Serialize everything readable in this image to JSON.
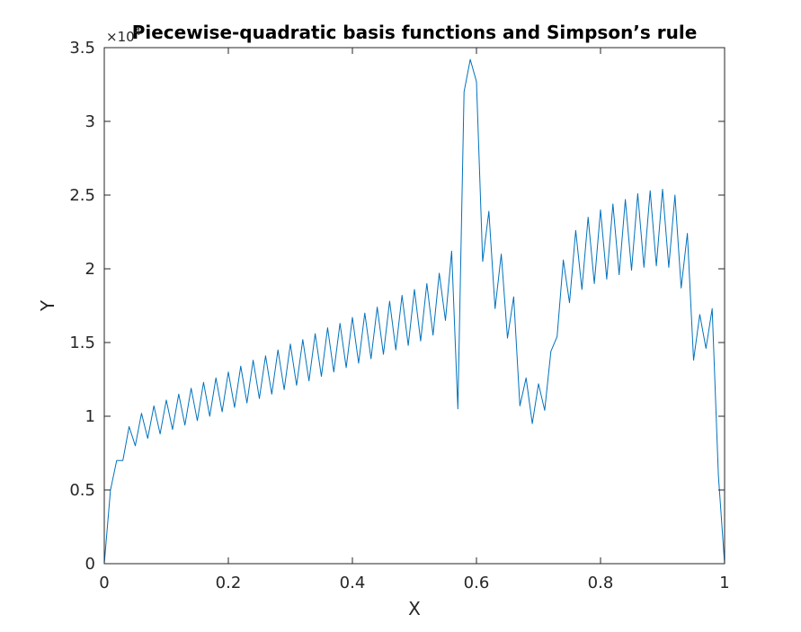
{
  "chart_data": {
    "type": "line",
    "title": "Piecewise-quadratic basis functions and Simpson’s rule",
    "xlabel": "X",
    "ylabel": "Y",
    "xlim": [
      0,
      1
    ],
    "ylim": [
      0,
      35000
    ],
    "y_exponent_label": "×10",
    "y_exponent_power": "4",
    "xticks": [
      0,
      0.2,
      0.4,
      0.6,
      0.8,
      1
    ],
    "xtick_labels": [
      "0",
      "0.2",
      "0.4",
      "0.6",
      "0.8",
      "1"
    ],
    "yticks": [
      0,
      5000,
      10000,
      15000,
      20000,
      25000,
      30000,
      35000
    ],
    "ytick_labels": [
      "0",
      "0.5",
      "1",
      "1.5",
      "2",
      "2.5",
      "3",
      "3.5"
    ],
    "grid": false,
    "line_color": "#0072BD",
    "series": [
      {
        "x": [
          0,
          0.01,
          0.02,
          0.03,
          0.04,
          0.05,
          0.06,
          0.07,
          0.08,
          0.09,
          0.1,
          0.11,
          0.12,
          0.13,
          0.14,
          0.15,
          0.16,
          0.17,
          0.18,
          0.19,
          0.2,
          0.21,
          0.22,
          0.23,
          0.24,
          0.25,
          0.26,
          0.27,
          0.28,
          0.29,
          0.3,
          0.31,
          0.32,
          0.33,
          0.34,
          0.35,
          0.36,
          0.37,
          0.38,
          0.39,
          0.4,
          0.41,
          0.42,
          0.43,
          0.44,
          0.45,
          0.46,
          0.47,
          0.48,
          0.49,
          0.5,
          0.51,
          0.52,
          0.53,
          0.54,
          0.55,
          0.56,
          0.57,
          0.58,
          0.59,
          0.6,
          0.61,
          0.62,
          0.63,
          0.64,
          0.65,
          0.66,
          0.67,
          0.68,
          0.69,
          0.7,
          0.71,
          0.72,
          0.73,
          0.74,
          0.75,
          0.76,
          0.77,
          0.78,
          0.79,
          0.8,
          0.81,
          0.82,
          0.83,
          0.84,
          0.85,
          0.86,
          0.87,
          0.88,
          0.89,
          0.9,
          0.91,
          0.92,
          0.93,
          0.94,
          0.95,
          0.96,
          0.97,
          0.98,
          0.99,
          1.0
        ],
        "y": [
          0,
          5000,
          7000,
          7000,
          9300,
          8000,
          10200,
          8500,
          10700,
          8800,
          11100,
          9100,
          11500,
          9400,
          11900,
          9700,
          12300,
          10000,
          12600,
          10300,
          13000,
          10600,
          13400,
          10900,
          13800,
          11200,
          14100,
          11500,
          14500,
          11800,
          14900,
          12100,
          15200,
          12400,
          15600,
          12700,
          16000,
          13000,
          16300,
          13300,
          16700,
          13600,
          17000,
          13900,
          17400,
          14200,
          17800,
          14500,
          18200,
          14800,
          18600,
          15100,
          19000,
          15500,
          19700,
          16500,
          21200,
          10500,
          32000,
          34200,
          32700,
          20500,
          23900,
          17300,
          21000,
          15300,
          18100,
          10700,
          12600,
          9500,
          12200,
          10400,
          14400,
          15400,
          20600,
          17700,
          22600,
          18600,
          23500,
          19000,
          24000,
          19300,
          24400,
          19600,
          24700,
          19900,
          25100,
          20100,
          25300,
          20200,
          25400,
          20100,
          25000,
          18700,
          22400,
          13800,
          16900,
          14600,
          17300,
          6000,
          0
        ]
      }
    ]
  }
}
